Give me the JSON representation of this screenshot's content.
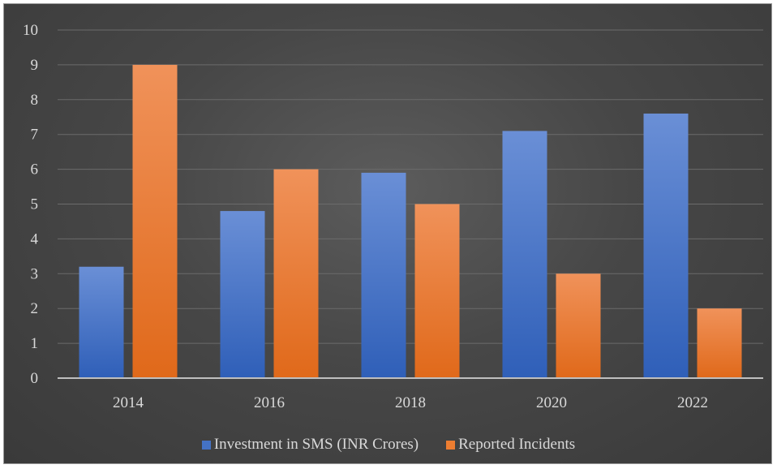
{
  "chart_data": {
    "type": "bar",
    "categories": [
      "2014",
      "2016",
      "2018",
      "2020",
      "2022"
    ],
    "series": [
      {
        "name": "Investment in SMS (INR Crores)",
        "values": [
          3.2,
          4.8,
          5.9,
          7.1,
          7.6
        ],
        "color": "#4472c4"
      },
      {
        "name": "Reported Incidents",
        "values": [
          9,
          6,
          5,
          3,
          2
        ],
        "color": "#ed7d31"
      }
    ],
    "ylim": [
      0,
      10
    ],
    "yticks": [
      "0",
      "1",
      "2",
      "3",
      "4",
      "5",
      "6",
      "7",
      "8",
      "9",
      "10"
    ],
    "grid": true,
    "legend_position": "bottom",
    "title": "",
    "xlabel": "",
    "ylabel": ""
  }
}
